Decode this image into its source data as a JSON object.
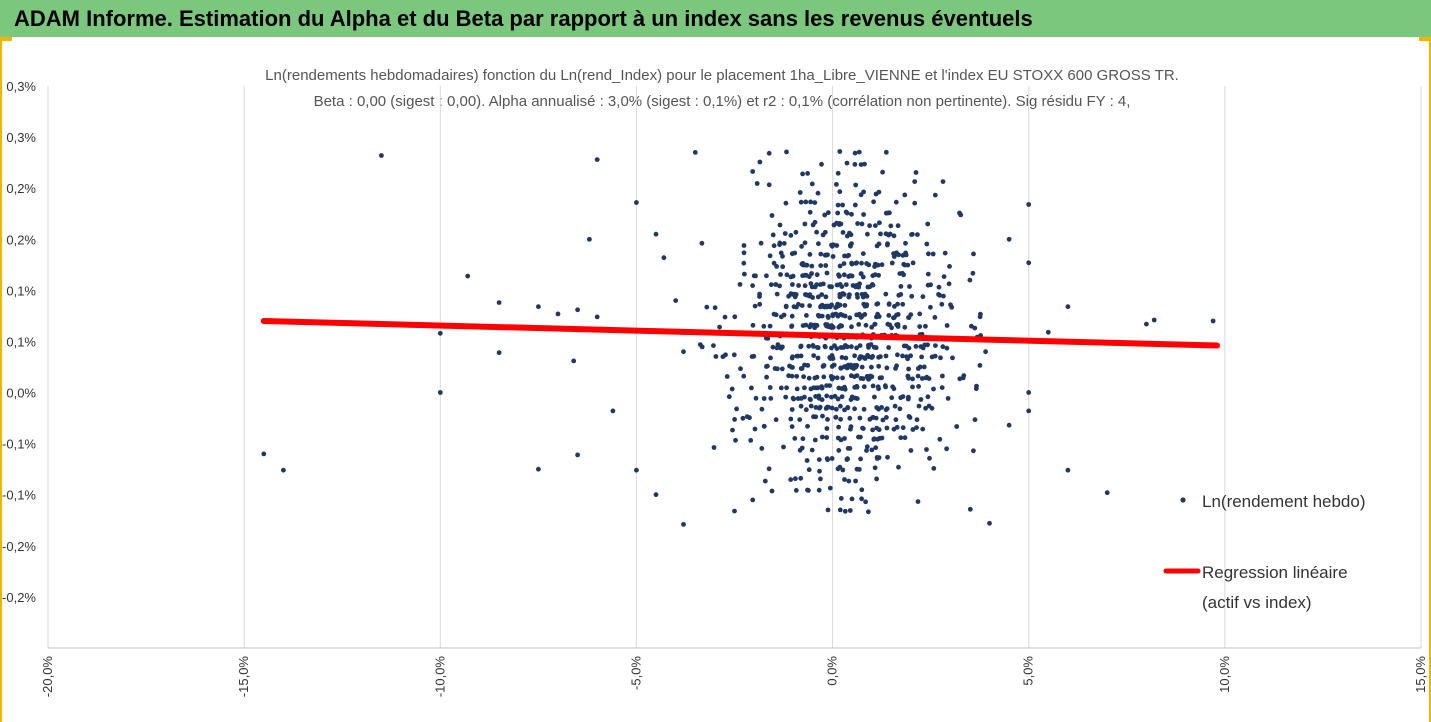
{
  "header": {
    "title": "ADAM Informe. Estimation du Alpha et du Beta par rapport à un index sans les revenus éventuels"
  },
  "colors": {
    "header_bg": "#7cc77e",
    "accent": "#f2b400",
    "points": "#1f3864",
    "regression": "#ff0000"
  },
  "chart_data": {
    "type": "scatter",
    "title": "Ln(rendements hebdomadaires) fonction du Ln(rend_Index) pour le placement 1ha_Libre_VIENNE et l'index EU STOXX 600 GROSS TR.",
    "subtitle": "Beta : 0,00 (sigest : 0,00). Alpha annualisé : 3,0% (sigest : 0,1%) et r2 : 0,1% (corrélation non pertinente). Sig résidu FY : 4,",
    "xlabel": "",
    "ylabel": "",
    "x_ticks": [
      "-20,0%",
      "-15,0%",
      "-10,0%",
      "-5,0%",
      "0,0%",
      "5,0%",
      "10,0%",
      "15,0%"
    ],
    "x_tick_values": [
      -20,
      -15,
      -10,
      -5,
      0,
      5,
      10,
      15
    ],
    "y_ticks": [
      "0,3%",
      "0,3%",
      "0,2%",
      "0,2%",
      "0,1%",
      "0,1%",
      "0,0%",
      "-0,1%",
      "-0,1%",
      "-0,2%",
      "-0,2%"
    ],
    "y_tick_values": [
      0.35,
      0.3,
      0.25,
      0.2,
      0.15,
      0.1,
      0.05,
      0.0,
      -0.05,
      -0.1,
      -0.15,
      -0.2
    ],
    "xlim": [
      -20,
      15
    ],
    "ylim": [
      -0.2,
      0.35
    ],
    "grid": "vertical",
    "legend_position": "right",
    "series": [
      {
        "name": "Ln(rendement hebdo)",
        "kind": "points",
        "outliers": [
          [
            -11.5,
            0.282
          ],
          [
            -14.5,
            -0.01
          ],
          [
            -14.0,
            -0.026
          ],
          [
            -10.0,
            0.108
          ],
          [
            -10.0,
            0.05
          ],
          [
            -9.3,
            0.164
          ],
          [
            -8.5,
            0.138
          ],
          [
            -8.5,
            0.089
          ],
          [
            -7.5,
            0.134
          ],
          [
            -7.5,
            -0.025
          ],
          [
            -7.0,
            0.127
          ],
          [
            -6.6,
            0.081
          ],
          [
            -6.5,
            0.131
          ],
          [
            -6.5,
            -0.011
          ],
          [
            -6.2,
            0.2
          ],
          [
            -6.0,
            0.278
          ],
          [
            -6.0,
            0.124
          ],
          [
            -5.9,
            0.112
          ],
          [
            -5.6,
            0.032
          ],
          [
            -5.0,
            0.236
          ],
          [
            -5.0,
            -0.026
          ],
          [
            -4.5,
            0.205
          ],
          [
            -4.5,
            -0.05
          ],
          [
            -4.3,
            0.182
          ],
          [
            -3.8,
            -0.079
          ],
          [
            -3.8,
            0.09
          ],
          [
            -3.5,
            0.285
          ],
          [
            -2.5,
            -0.066
          ],
          [
            4.0,
            -0.078
          ],
          [
            4.5,
            0.2
          ],
          [
            4.5,
            0.018
          ],
          [
            5.0,
            0.234
          ],
          [
            5.0,
            0.177
          ],
          [
            5.0,
            0.05
          ],
          [
            5.0,
            0.032
          ],
          [
            5.5,
            0.109
          ],
          [
            6.0,
            0.134
          ],
          [
            6.0,
            -0.026
          ],
          [
            7.0,
            -0.048
          ],
          [
            8.0,
            0.117
          ],
          [
            8.2,
            0.121
          ],
          [
            9.7,
            0.12
          ],
          [
            3.5,
            0.16
          ],
          [
            3.9,
            0.09
          ],
          [
            -4.0,
            0.14
          ]
        ]
      },
      {
        "name": "Regression linéaire\n(actif vs index)",
        "name_lines": [
          "Regression linéaire",
          "(actif vs index)"
        ],
        "kind": "line",
        "x": [
          -14.5,
          9.8
        ],
        "y": [
          0.12,
          0.096
        ]
      }
    ]
  }
}
